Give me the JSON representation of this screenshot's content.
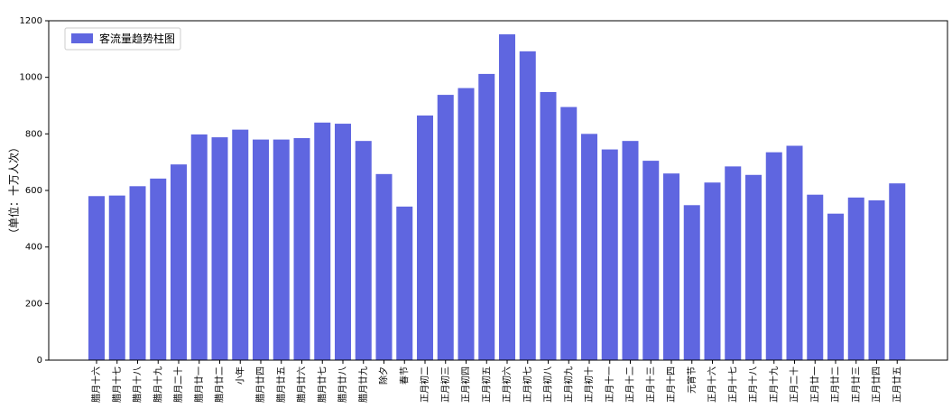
{
  "chart_data": {
    "type": "bar",
    "title": "",
    "xlabel": "",
    "ylabel": "（单位：十万人次）",
    "ylim": [
      0,
      1200
    ],
    "yticks": [
      0,
      200,
      400,
      600,
      800,
      1000,
      1200
    ],
    "grid": false,
    "legend": {
      "placement": "top-left",
      "entries": [
        "客流量趋势柱图"
      ]
    },
    "bar_color": "#5f66e0",
    "categories": [
      "腊月十六",
      "腊月十七",
      "腊月十八",
      "腊月十九",
      "腊月二十",
      "腊月廿一",
      "腊月廿二",
      "小年",
      "腊月廿四",
      "腊月廿五",
      "腊月廿六",
      "腊月廿七",
      "腊月廿八",
      "腊月廿九",
      "除夕",
      "春节",
      "正月初二",
      "正月初三",
      "正月初四",
      "正月初五",
      "正月初六",
      "正月初七",
      "正月初八",
      "正月初九",
      "正月初十",
      "正月十一",
      "正月十二",
      "正月十三",
      "正月十四",
      "元宵节",
      "正月十六",
      "正月十七",
      "正月十八",
      "正月十九",
      "正月二十",
      "正月廿一",
      "正月廿二",
      "正月廿三",
      "正月廿四",
      "正月廿五"
    ],
    "series": [
      {
        "name": "客流量趋势柱图",
        "values": [
          580,
          582,
          615,
          642,
          692,
          798,
          788,
          815,
          780,
          780,
          785,
          840,
          836,
          775,
          658,
          543,
          865,
          938,
          962,
          1012,
          1152,
          1092,
          948,
          895,
          800,
          745,
          775,
          705,
          660,
          548,
          628,
          685,
          655,
          735,
          758,
          585,
          518,
          575,
          565,
          625
        ]
      }
    ]
  }
}
